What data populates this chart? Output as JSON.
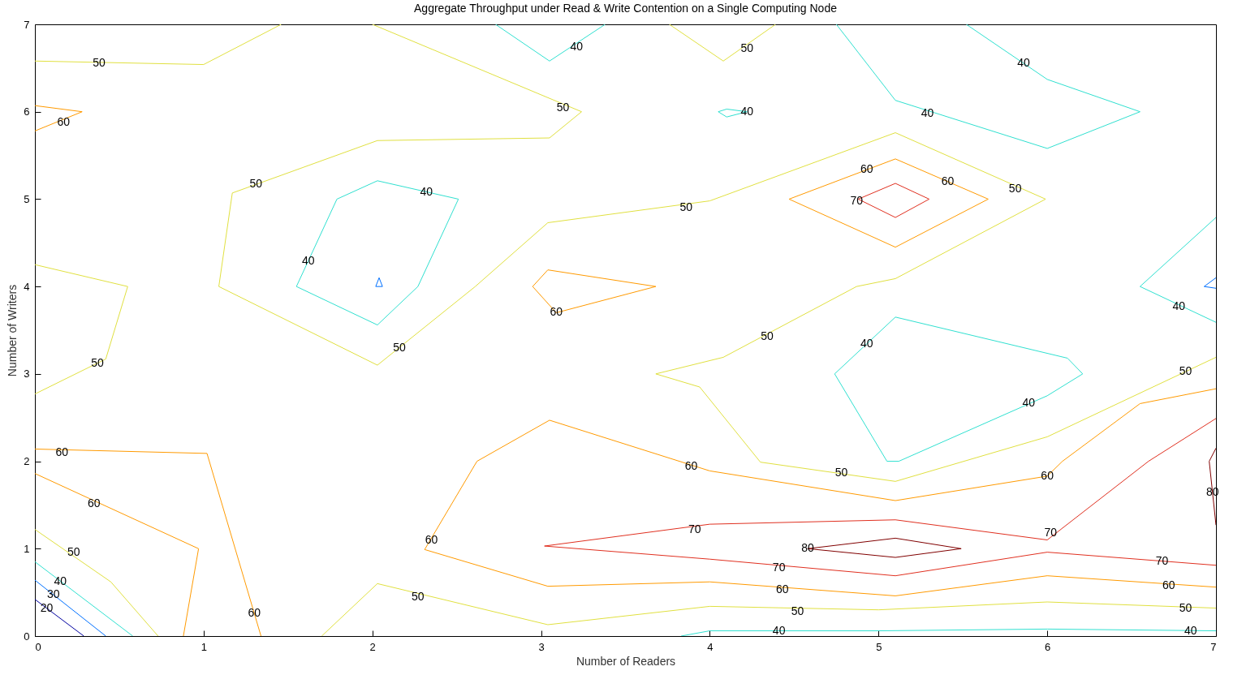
{
  "chart_data": {
    "type": "line",
    "title": "Aggregate Throughput under Read & Write Contention on a Single Computing Node",
    "xlabel": "Number of Readers",
    "ylabel": "Number of Writers",
    "xlim": [
      0,
      7
    ],
    "ylim": [
      0,
      7
    ],
    "xticks": [
      0,
      1,
      2,
      3,
      4,
      5,
      6,
      7
    ],
    "yticks": [
      0,
      1,
      2,
      3,
      4,
      5,
      6,
      7
    ],
    "grid": false,
    "legend": false,
    "marker": "none",
    "line_style": "solid",
    "series": [
      {
        "color": "#e0e040",
        "x": [
          0,
          1,
          1.46
        ],
        "values": [
          6.58,
          6.54,
          7
        ]
      },
      {
        "color": "#e0e040",
        "x": [
          2.0,
          3.24
        ],
        "values": [
          7,
          6
        ]
      },
      {
        "color": "#e0e040",
        "x": [
          1.09,
          1.17,
          2.03,
          3.05,
          3.24
        ],
        "values": [
          4.0,
          5.07,
          5.67,
          5.7,
          6
        ]
      },
      {
        "color": "#e0e040",
        "x": [
          1.09,
          2.03,
          2.61,
          3.04,
          4.0,
          5.1,
          5.99
        ],
        "values": [
          4.0,
          3.1,
          4.0,
          4.73,
          4.98,
          5.76,
          5.0
        ]
      },
      {
        "color": "#e0e040",
        "x": [
          3.68,
          4.08,
          4.87,
          5.1,
          5.99
        ],
        "values": [
          3.0,
          3.19,
          4.0,
          4.09,
          5.0
        ]
      },
      {
        "color": "#e0e040",
        "x": [
          3.68,
          3.94,
          4.3,
          5.1,
          6.0,
          7
        ],
        "values": [
          3.0,
          2.85,
          1.99,
          1.77,
          2.28,
          3.19
        ]
      },
      {
        "color": "#e0e040",
        "x": [
          0,
          0.55
        ],
        "values": [
          4.25,
          4.0
        ]
      },
      {
        "color": "#e0e040",
        "x": [
          0,
          0.42,
          0.55
        ],
        "values": [
          2.77,
          3.17,
          4.0
        ]
      },
      {
        "color": "#e0e040",
        "x": [
          3.76,
          4.08,
          4.39
        ],
        "values": [
          7,
          6.58,
          7
        ]
      },
      {
        "color": "#e0e040",
        "x": [
          0,
          0.45,
          0.73
        ],
        "values": [
          1.22,
          0.62,
          0
        ]
      },
      {
        "color": "#e0e040",
        "x": [
          1.7,
          2.03,
          3.04,
          4.0,
          5,
          6,
          7
        ],
        "values": [
          0,
          0.6,
          0.13,
          0.34,
          0.3,
          0.39,
          0.32
        ]
      },
      {
        "color": "#30e0d0",
        "x": [
          1.55,
          1.79,
          2.03,
          2.51
        ],
        "values": [
          4.0,
          5.0,
          5.21,
          5.0
        ]
      },
      {
        "color": "#30e0d0",
        "x": [
          1.55,
          2.03,
          2.27,
          2.51
        ],
        "values": [
          4.0,
          3.56,
          4.0,
          5.0
        ]
      },
      {
        "color": "#30e0d0",
        "x": [
          2.73,
          3.05,
          3.38
        ],
        "values": [
          7,
          6.58,
          7
        ]
      },
      {
        "color": "#30e0d0",
        "x": [
          4.05,
          4.1,
          4.22
        ],
        "values": [
          6,
          6.03,
          6
        ]
      },
      {
        "color": "#30e0d0",
        "x": [
          4.05,
          4.1,
          4.22
        ],
        "values": [
          6,
          5.94,
          6
        ]
      },
      {
        "color": "#30e0d0",
        "x": [
          4.75,
          5.1,
          6,
          6.55
        ],
        "values": [
          7,
          6.13,
          5.58,
          6
        ]
      },
      {
        "color": "#30e0d0",
        "x": [
          5.52,
          6,
          6.55
        ],
        "values": [
          7,
          6.37,
          6
        ]
      },
      {
        "color": "#30e0d0",
        "x": [
          4.74,
          5.1,
          6.12,
          6.21
        ],
        "values": [
          3.0,
          3.65,
          3.18,
          3.0
        ]
      },
      {
        "color": "#30e0d0",
        "x": [
          4.74,
          5.05,
          5.12,
          6.0,
          6.21
        ],
        "values": [
          3.0,
          2.0,
          2.0,
          2.75,
          3.0
        ]
      },
      {
        "color": "#30e0d0",
        "x": [
          6.55,
          7
        ],
        "values": [
          4.0,
          4.79
        ]
      },
      {
        "color": "#30e0d0",
        "x": [
          6.55,
          7
        ],
        "values": [
          4.0,
          3.59
        ]
      },
      {
        "color": "#30e0d0",
        "x": [
          3.83,
          4.0,
          5,
          6,
          7
        ],
        "values": [
          0,
          0.06,
          0.06,
          0.08,
          0.06
        ]
      },
      {
        "color": "#30e0d0",
        "x": [
          0,
          0.58
        ],
        "values": [
          0.85,
          0
        ]
      },
      {
        "color": "#0070ff",
        "x": [
          2.02,
          2.04,
          2.06
        ],
        "values": [
          4.0,
          4.1,
          4.0
        ]
      },
      {
        "color": "#0070ff",
        "x": [
          2.02,
          2.06
        ],
        "values": [
          4.0,
          4.0
        ]
      },
      {
        "color": "#0070ff",
        "x": [
          6.93,
          7
        ],
        "values": [
          4.0,
          4.1
        ]
      },
      {
        "color": "#0070ff",
        "x": [
          6.93,
          7
        ],
        "values": [
          4.0,
          3.98
        ]
      },
      {
        "color": "#0070ff",
        "x": [
          0,
          0.42
        ],
        "values": [
          0.64,
          0
        ]
      },
      {
        "color": "#0000a0",
        "x": [
          0,
          0.29
        ],
        "values": [
          0.42,
          0
        ]
      },
      {
        "color": "#ff9a00",
        "x": [
          0,
          0.28
        ],
        "values": [
          6.07,
          6
        ]
      },
      {
        "color": "#ff9a00",
        "x": [
          0,
          0.28
        ],
        "values": [
          5.78,
          6
        ]
      },
      {
        "color": "#ff9a00",
        "x": [
          0,
          1.02,
          1.34
        ],
        "values": [
          2.14,
          2.09,
          0
        ]
      },
      {
        "color": "#ff9a00",
        "x": [
          0,
          0.97
        ],
        "values": [
          1.86,
          1.0
        ]
      },
      {
        "color": "#ff9a00",
        "x": [
          0.88,
          0.97
        ],
        "values": [
          0,
          1.0
        ]
      },
      {
        "color": "#ff9a00",
        "x": [
          2.95,
          3.04,
          3.68
        ],
        "values": [
          4.0,
          4.19,
          4.0
        ]
      },
      {
        "color": "#ff9a00",
        "x": [
          2.95,
          3.09,
          3.68
        ],
        "values": [
          4.0,
          3.7,
          4.0
        ]
      },
      {
        "color": "#ff9a00",
        "x": [
          4.47,
          5.1,
          5.65
        ],
        "values": [
          5.0,
          5.46,
          5.0
        ]
      },
      {
        "color": "#ff9a00",
        "x": [
          4.47,
          5.1,
          5.65
        ],
        "values": [
          5.0,
          4.45,
          5.0
        ]
      },
      {
        "color": "#ff9a00",
        "x": [
          2.31,
          3.04,
          4.0,
          5.1,
          6,
          7
        ],
        "values": [
          0.99,
          0.57,
          0.62,
          0.46,
          0.69,
          0.56
        ]
      },
      {
        "color": "#ff9a00",
        "x": [
          2.31,
          2.62,
          3.05,
          4.0,
          5.1,
          6,
          6.09,
          6.55,
          7
        ],
        "values": [
          0.99,
          2.0,
          2.47,
          1.89,
          1.55,
          1.83,
          2.0,
          2.66,
          2.83
        ]
      },
      {
        "color": "#e03020",
        "x": [
          4.88,
          5.1,
          5.3
        ],
        "values": [
          5.0,
          5.18,
          5.0
        ]
      },
      {
        "color": "#e03020",
        "x": [
          4.88,
          5.1,
          5.3
        ],
        "values": [
          5.0,
          4.79,
          5.0
        ]
      },
      {
        "color": "#e03020",
        "x": [
          3.02,
          4.0,
          5.1,
          6,
          6.6,
          7
        ],
        "values": [
          1.03,
          1.28,
          1.33,
          1.1,
          2.0,
          2.49
        ]
      },
      {
        "color": "#e03020",
        "x": [
          3.02,
          4,
          5.1,
          6,
          7
        ],
        "values": [
          1.03,
          0.88,
          0.69,
          0.96,
          0.81
        ]
      },
      {
        "color": "#800000",
        "x": [
          4.58,
          5.1,
          5.49
        ],
        "values": [
          1.0,
          1.12,
          1.0
        ]
      },
      {
        "color": "#800000",
        "x": [
          4.58,
          5.1,
          5.49
        ],
        "values": [
          1.0,
          0.9,
          1.0
        ]
      },
      {
        "color": "#800000",
        "x": [
          6.96,
          7
        ],
        "values": [
          2.0,
          2.15
        ]
      },
      {
        "color": "#800000",
        "x": [
          6.96,
          7
        ],
        "values": [
          2.0,
          1.27
        ]
      }
    ],
    "annotations": [
      {
        "text": "50",
        "x": 0.38,
        "y": 6.55
      },
      {
        "text": "50",
        "x": 3.13,
        "y": 6.04
      },
      {
        "text": "50",
        "x": 1.31,
        "y": 5.17
      },
      {
        "text": "50",
        "x": 2.16,
        "y": 3.3
      },
      {
        "text": "50",
        "x": 3.86,
        "y": 4.9
      },
      {
        "text": "50",
        "x": 5.81,
        "y": 5.12
      },
      {
        "text": "50",
        "x": 4.34,
        "y": 3.43
      },
      {
        "text": "50",
        "x": 4.78,
        "y": 1.87
      },
      {
        "text": "50",
        "x": 6.82,
        "y": 3.03
      },
      {
        "text": "50",
        "x": 0.37,
        "y": 3.12
      },
      {
        "text": "50",
        "x": 4.22,
        "y": 6.72
      },
      {
        "text": "50",
        "x": 0.23,
        "y": 0.96
      },
      {
        "text": "50",
        "x": 2.27,
        "y": 0.45
      },
      {
        "text": "50",
        "x": 4.52,
        "y": 0.28
      },
      {
        "text": "50",
        "x": 6.82,
        "y": 0.32
      },
      {
        "text": "40",
        "x": 2.32,
        "y": 5.08
      },
      {
        "text": "40",
        "x": 1.62,
        "y": 4.29
      },
      {
        "text": "40",
        "x": 3.21,
        "y": 6.74
      },
      {
        "text": "40",
        "x": 4.22,
        "y": 6
      },
      {
        "text": "40",
        "x": 5.29,
        "y": 5.98
      },
      {
        "text": "40",
        "x": 5.86,
        "y": 6.55
      },
      {
        "text": "40",
        "x": 4.93,
        "y": 3.34
      },
      {
        "text": "40",
        "x": 5.89,
        "y": 2.66
      },
      {
        "text": "40",
        "x": 6.78,
        "y": 3.77
      },
      {
        "text": "40",
        "x": 4.41,
        "y": 0.06
      },
      {
        "text": "40",
        "x": 6.85,
        "y": 0.06
      },
      {
        "text": "40",
        "x": 0.15,
        "y": 0.62
      },
      {
        "text": "30",
        "x": 0.11,
        "y": 0.47
      },
      {
        "text": "20",
        "x": 0.07,
        "y": 0.32
      },
      {
        "text": "60",
        "x": 0.17,
        "y": 5.88
      },
      {
        "text": "60",
        "x": 0.16,
        "y": 2.1
      },
      {
        "text": "60",
        "x": 1.3,
        "y": 0.26
      },
      {
        "text": "60",
        "x": 0.35,
        "y": 1.51
      },
      {
        "text": "60",
        "x": 3.09,
        "y": 3.7
      },
      {
        "text": "60",
        "x": 4.93,
        "y": 5.34
      },
      {
        "text": "60",
        "x": 5.41,
        "y": 5.2
      },
      {
        "text": "60",
        "x": 2.35,
        "y": 1.1
      },
      {
        "text": "60",
        "x": 3.89,
        "y": 1.94
      },
      {
        "text": "60",
        "x": 6,
        "y": 1.83
      },
      {
        "text": "60",
        "x": 4.43,
        "y": 0.53
      },
      {
        "text": "60",
        "x": 6.72,
        "y": 0.58
      },
      {
        "text": "70",
        "x": 4.87,
        "y": 4.98
      },
      {
        "text": "70",
        "x": 3.91,
        "y": 1.22
      },
      {
        "text": "70",
        "x": 4.41,
        "y": 0.78
      },
      {
        "text": "70",
        "x": 6.02,
        "y": 1.18
      },
      {
        "text": "70",
        "x": 6.68,
        "y": 0.85
      },
      {
        "text": "80",
        "x": 4.58,
        "y": 1
      },
      {
        "text": "80",
        "x": 6.98,
        "y": 1.64
      }
    ]
  }
}
